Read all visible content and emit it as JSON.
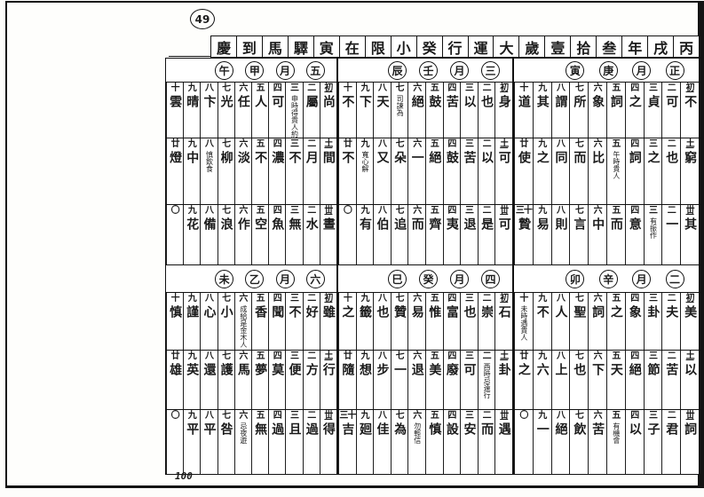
{
  "page_label": "49",
  "page_number": "100",
  "title_chars": [
    "慶",
    "到",
    "馬",
    "驛",
    "寅",
    "在",
    "限",
    "小",
    "癸",
    "行",
    "運",
    "大",
    "歲",
    "壹",
    "拾",
    "叁",
    "年",
    "戌",
    "丙"
  ],
  "title_text_rtl": "丙戌年叁拾壹歲大運行癸小限在寅驛馬到慶",
  "halves": [
    {
      "months": [
        {
          "name": "五月甲午",
          "header": [
            "午",
            "甲",
            "月",
            "五"
          ],
          "rows": [
            {
              "cells": [
                {
                  "n": "初",
                  "t": "尚"
                },
                {
                  "n": "二",
                  "t": "屬"
                },
                {
                  "n": "三",
                  "t": "申時得貴人約",
                  "s": 1
                },
                {
                  "n": "四",
                  "t": "可"
                },
                {
                  "n": "五",
                  "t": "人"
                },
                {
                  "n": "六",
                  "t": "任"
                },
                {
                  "n": "七",
                  "t": "光"
                },
                {
                  "n": "八",
                  "t": "卞"
                },
                {
                  "n": "九",
                  "t": "晴"
                },
                {
                  "n": "十",
                  "t": "雲"
                }
              ]
            },
            {
              "cells": [
                {
                  "n": "土",
                  "t": "間"
                },
                {
                  "n": "二",
                  "t": "月"
                },
                {
                  "n": "三",
                  "t": "不"
                },
                {
                  "n": "四",
                  "t": "濃"
                },
                {
                  "n": "五",
                  "t": "不"
                },
                {
                  "n": "六",
                  "t": "淡"
                },
                {
                  "n": "七",
                  "t": "柳"
                },
                {
                  "n": "八",
                  "t": "慎飲食",
                  "s": 1
                },
                {
                  "n": "九",
                  "t": "中"
                },
                {
                  "n": "廿",
                  "t": "燈"
                }
              ]
            },
            {
              "cells": [
                {
                  "n": "丗",
                  "t": "晝"
                },
                {
                  "n": "二",
                  "t": "水"
                },
                {
                  "n": "三",
                  "t": "無"
                },
                {
                  "n": "四",
                  "t": "魚"
                },
                {
                  "n": "五",
                  "t": "空"
                },
                {
                  "n": "六",
                  "t": "作"
                },
                {
                  "n": "七",
                  "t": "浪"
                },
                {
                  "n": "八",
                  "t": "備"
                },
                {
                  "n": "九",
                  "t": "花"
                },
                {
                  "n": "〇",
                  "t": ""
                }
              ]
            }
          ]
        },
        {
          "name": "三月壬辰",
          "header": [
            "辰",
            "壬",
            "月",
            "三"
          ],
          "rows": [
            {
              "cells": [
                {
                  "n": "初",
                  "t": "身"
                },
                {
                  "n": "二",
                  "t": "也"
                },
                {
                  "n": "三",
                  "t": "以"
                },
                {
                  "n": "四",
                  "t": "苦"
                },
                {
                  "n": "五",
                  "t": "鼓"
                },
                {
                  "n": "六",
                  "t": "絕"
                },
                {
                  "n": "七",
                  "t": "司諫為",
                  "s": 1
                },
                {
                  "n": "八",
                  "t": "天"
                },
                {
                  "n": "九",
                  "t": "下"
                },
                {
                  "n": "十",
                  "t": "不"
                }
              ]
            },
            {
              "cells": [
                {
                  "n": "土",
                  "t": "可"
                },
                {
                  "n": "二",
                  "t": "以"
                },
                {
                  "n": "三",
                  "t": "苦"
                },
                {
                  "n": "四",
                  "t": "鼓"
                },
                {
                  "n": "五",
                  "t": "絕"
                },
                {
                  "n": "六",
                  "t": "一"
                },
                {
                  "n": "七",
                  "t": "朵"
                },
                {
                  "n": "八",
                  "t": "又"
                },
                {
                  "n": "九",
                  "t": "寬心解",
                  "s": 1
                },
                {
                  "n": "廿",
                  "t": "不"
                }
              ]
            },
            {
              "cells": [
                {
                  "n": "丗",
                  "t": "可"
                },
                {
                  "n": "二",
                  "t": "是"
                },
                {
                  "n": "三",
                  "t": "退"
                },
                {
                  "n": "四",
                  "t": "夷"
                },
                {
                  "n": "五",
                  "t": "齊"
                },
                {
                  "n": "六",
                  "t": "而"
                },
                {
                  "n": "七",
                  "t": "追"
                },
                {
                  "n": "八",
                  "t": "伯"
                },
                {
                  "n": "九",
                  "t": "有"
                },
                {
                  "n": "〇",
                  "t": ""
                }
              ]
            }
          ]
        },
        {
          "name": "正月庚寅",
          "header": [
            "寅",
            "庚",
            "月",
            "正"
          ],
          "rows": [
            {
              "cells": [
                {
                  "n": "初",
                  "t": "不"
                },
                {
                  "n": "二",
                  "t": "可"
                },
                {
                  "n": "三",
                  "t": "貞"
                },
                {
                  "n": "四",
                  "t": "之"
                },
                {
                  "n": "五",
                  "t": "詞"
                },
                {
                  "n": "六",
                  "t": "象"
                },
                {
                  "n": "七",
                  "t": "所"
                },
                {
                  "n": "八",
                  "t": "謂"
                },
                {
                  "n": "九",
                  "t": "其"
                },
                {
                  "n": "十",
                  "t": "道"
                }
              ]
            },
            {
              "cells": [
                {
                  "n": "土",
                  "t": "窮"
                },
                {
                  "n": "二",
                  "t": "也"
                },
                {
                  "n": "三",
                  "t": "之"
                },
                {
                  "n": "四",
                  "t": "詞"
                },
                {
                  "n": "五",
                  "t": "午時貴人",
                  "s": 1
                },
                {
                  "n": "六",
                  "t": "比"
                },
                {
                  "n": "七",
                  "t": "而"
                },
                {
                  "n": "八",
                  "t": "同"
                },
                {
                  "n": "九",
                  "t": "之"
                },
                {
                  "n": "廿",
                  "t": "使"
                }
              ]
            },
            {
              "cells": [
                {
                  "n": "丗",
                  "t": "其"
                },
                {
                  "n": "二",
                  "t": "一"
                },
                {
                  "n": "三",
                  "t": "有振作",
                  "s": 1
                },
                {
                  "n": "四",
                  "t": "意"
                },
                {
                  "n": "五",
                  "t": "而"
                },
                {
                  "n": "六",
                  "t": "中"
                },
                {
                  "n": "七",
                  "t": "言"
                },
                {
                  "n": "八",
                  "t": "則"
                },
                {
                  "n": "九",
                  "t": "易"
                },
                {
                  "n": "三十",
                  "t": "贄"
                }
              ]
            }
          ]
        }
      ]
    },
    {
      "months": [
        {
          "name": "六月乙未",
          "header": [
            "未",
            "乙",
            "月",
            "六"
          ],
          "rows": [
            {
              "cells": [
                {
                  "n": "初",
                  "t": "雖"
                },
                {
                  "n": "二",
                  "t": "好"
                },
                {
                  "n": "三",
                  "t": "不"
                },
                {
                  "n": "四",
                  "t": "聞"
                },
                {
                  "n": "五",
                  "t": "香"
                },
                {
                  "n": "六",
                  "t": "成給是金木人",
                  "s": 1
                },
                {
                  "n": "七",
                  "t": "小"
                },
                {
                  "n": "八",
                  "t": "心"
                },
                {
                  "n": "九",
                  "t": "謹"
                },
                {
                  "n": "十",
                  "t": "慎"
                }
              ]
            },
            {
              "cells": [
                {
                  "n": "土",
                  "t": "行"
                },
                {
                  "n": "二",
                  "t": "方"
                },
                {
                  "n": "三",
                  "t": "便"
                },
                {
                  "n": "四",
                  "t": "莫"
                },
                {
                  "n": "五",
                  "t": "夢"
                },
                {
                  "n": "六",
                  "t": "馬"
                },
                {
                  "n": "七",
                  "t": "護"
                },
                {
                  "n": "八",
                  "t": "還"
                },
                {
                  "n": "九",
                  "t": "英"
                },
                {
                  "n": "廿",
                  "t": "雄"
                }
              ]
            },
            {
              "cells": [
                {
                  "n": "丗",
                  "t": "得"
                },
                {
                  "n": "二",
                  "t": "過"
                },
                {
                  "n": "三",
                  "t": "且"
                },
                {
                  "n": "四",
                  "t": "過"
                },
                {
                  "n": "五",
                  "t": "無"
                },
                {
                  "n": "六",
                  "t": "忌夜遊",
                  "s": 1
                },
                {
                  "n": "七",
                  "t": "咎"
                },
                {
                  "n": "八",
                  "t": "平"
                },
                {
                  "n": "九",
                  "t": "平"
                },
                {
                  "n": "〇",
                  "t": ""
                }
              ]
            }
          ]
        },
        {
          "name": "四月癸巳",
          "header": [
            "巳",
            "癸",
            "月",
            "四"
          ],
          "rows": [
            {
              "cells": [
                {
                  "n": "初",
                  "t": "石"
                },
                {
                  "n": "二",
                  "t": "崇"
                },
                {
                  "n": "三",
                  "t": "也"
                },
                {
                  "n": "四",
                  "t": "富"
                },
                {
                  "n": "五",
                  "t": "惟"
                },
                {
                  "n": "六",
                  "t": "易"
                },
                {
                  "n": "七",
                  "t": "贊"
                },
                {
                  "n": "八",
                  "t": "也"
                },
                {
                  "n": "九",
                  "t": "籤"
                },
                {
                  "n": "十",
                  "t": "之"
                }
              ]
            },
            {
              "cells": [
                {
                  "n": "土",
                  "t": "卦"
                },
                {
                  "n": "二",
                  "t": "酉時忌遠行",
                  "s": 1
                },
                {
                  "n": "三",
                  "t": "可"
                },
                {
                  "n": "四",
                  "t": "廢"
                },
                {
                  "n": "五",
                  "t": "美"
                },
                {
                  "n": "六",
                  "t": "退"
                },
                {
                  "n": "七",
                  "t": "一"
                },
                {
                  "n": "八",
                  "t": "步"
                },
                {
                  "n": "九",
                  "t": "想"
                },
                {
                  "n": "廿",
                  "t": "隨"
                }
              ]
            },
            {
              "cells": [
                {
                  "n": "丗",
                  "t": "遇"
                },
                {
                  "n": "二",
                  "t": "而"
                },
                {
                  "n": "三",
                  "t": "安"
                },
                {
                  "n": "四",
                  "t": "設"
                },
                {
                  "n": "五",
                  "t": "慎"
                },
                {
                  "n": "六",
                  "t": "勿輕信",
                  "s": 1
                },
                {
                  "n": "七",
                  "t": "為"
                },
                {
                  "n": "八",
                  "t": "佳"
                },
                {
                  "n": "九",
                  "t": "廻"
                },
                {
                  "n": "三十",
                  "t": "吉"
                }
              ]
            }
          ]
        },
        {
          "name": "二月辛卯",
          "header": [
            "卯",
            "辛",
            "月",
            "二"
          ],
          "rows": [
            {
              "cells": [
                {
                  "n": "初",
                  "t": "美"
                },
                {
                  "n": "二",
                  "t": "夫"
                },
                {
                  "n": "三",
                  "t": "卦"
                },
                {
                  "n": "四",
                  "t": "象"
                },
                {
                  "n": "五",
                  "t": "之"
                },
                {
                  "n": "六",
                  "t": "詞"
                },
                {
                  "n": "七",
                  "t": "聖"
                },
                {
                  "n": "八",
                  "t": "人"
                },
                {
                  "n": "九",
                  "t": "不"
                },
                {
                  "n": "十",
                  "t": "未時遇貴人",
                  "s": 1
                }
              ]
            },
            {
              "cells": [
                {
                  "n": "土",
                  "t": "以"
                },
                {
                  "n": "二",
                  "t": "苦"
                },
                {
                  "n": "三",
                  "t": "節"
                },
                {
                  "n": "四",
                  "t": "絕"
                },
                {
                  "n": "五",
                  "t": "天"
                },
                {
                  "n": "六",
                  "t": "下"
                },
                {
                  "n": "七",
                  "t": "也"
                },
                {
                  "n": "八",
                  "t": "上"
                },
                {
                  "n": "九",
                  "t": "六"
                },
                {
                  "n": "廿",
                  "t": "之"
                }
              ]
            },
            {
              "cells": [
                {
                  "n": "丗",
                  "t": "詞"
                },
                {
                  "n": "二",
                  "t": "君"
                },
                {
                  "n": "三",
                  "t": "子"
                },
                {
                  "n": "四",
                  "t": "以"
                },
                {
                  "n": "五",
                  "t": "有機會",
                  "s": 1
                },
                {
                  "n": "六",
                  "t": "苦"
                },
                {
                  "n": "七",
                  "t": "飲"
                },
                {
                  "n": "八",
                  "t": "絕"
                },
                {
                  "n": "九",
                  "t": "一"
                },
                {
                  "n": "〇",
                  "t": ""
                }
              ]
            }
          ]
        }
      ]
    }
  ]
}
